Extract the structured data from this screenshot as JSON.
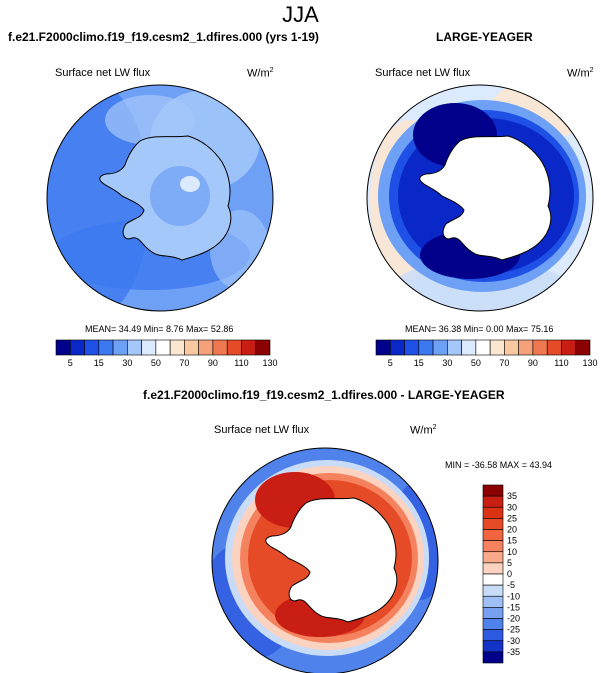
{
  "season": "JJA",
  "panels": [
    {
      "id": "model",
      "title": "f.e21.F2000climo.f19_f19.cesm2_1.dfires.000 (yrs 1-19)",
      "variable": "Surface net LW flux",
      "units_base": "W/m",
      "units_exp": "2",
      "stats": "MEAN= 34.49  Min=  8.76  Max=  52.86",
      "colorbar": [
        "5",
        "15",
        "30",
        "50",
        "70",
        "90",
        "110",
        "130"
      ]
    },
    {
      "id": "obs",
      "title": "LARGE-YEAGER",
      "variable": "Surface net LW flux",
      "units_base": "W/m",
      "units_exp": "2",
      "stats": "MEAN= 36.38  Min=  0.00  Max=  75.16",
      "colorbar": [
        "5",
        "15",
        "30",
        "50",
        "70",
        "90",
        "110",
        "130"
      ]
    },
    {
      "id": "diff",
      "title": "f.e21.F2000climo.f19_f19.cesm2_1.dfires.000 - LARGE-YEAGER",
      "variable": "Surface net LW flux",
      "units_base": "W/m",
      "units_exp": "2",
      "stats": "MIN = -36.58 MAX =  43.94",
      "colorbar": [
        "35",
        "30",
        "25",
        "20",
        "15",
        "10",
        "5",
        "0",
        "-5",
        "-10",
        "-15",
        "-20",
        "-25",
        "-30",
        "-35"
      ]
    }
  ],
  "chart_data": [
    {
      "type": "heatmap",
      "projection": "south-polar-stereographic",
      "title": "f.e21.F2000climo.f19_f19.cesm2_1.dfires.000 (yrs 1-19)",
      "variable": "Surface net LW flux",
      "units": "W/m2",
      "mean": 34.49,
      "min": 8.76,
      "max": 52.86,
      "contour_levels": [
        5,
        15,
        30,
        50,
        70,
        90,
        110,
        130
      ],
      "colors": [
        "#00008b",
        "#0a28c8",
        "#1e50e6",
        "#3c78f0",
        "#6ea0f5",
        "#a5c8fa",
        "#dceaff",
        "#ffffff",
        "#fbe6d2",
        "#f8c8a0",
        "#f5a07a",
        "#f07850",
        "#e64b28",
        "#c81e14",
        "#8b0000"
      ]
    },
    {
      "type": "heatmap",
      "projection": "south-polar-stereographic",
      "title": "LARGE-YEAGER",
      "variable": "Surface net LW flux",
      "units": "W/m2",
      "mean": 36.38,
      "min": 0.0,
      "max": 75.16,
      "contour_levels": [
        5,
        15,
        30,
        50,
        70,
        90,
        110,
        130
      ],
      "colors": [
        "#00008b",
        "#0a28c8",
        "#1e50e6",
        "#3c78f0",
        "#6ea0f5",
        "#a5c8fa",
        "#dceaff",
        "#ffffff",
        "#fbe6d2",
        "#f8c8a0",
        "#f5a07a",
        "#f07850",
        "#e64b28",
        "#c81e14",
        "#8b0000"
      ]
    },
    {
      "type": "heatmap",
      "projection": "south-polar-stereographic",
      "title": "f.e21.F2000climo.f19_f19.cesm2_1.dfires.000 - LARGE-YEAGER",
      "variable": "Surface net LW flux",
      "units": "W/m2",
      "min": -36.58,
      "max": 43.94,
      "contour_levels": [
        35,
        30,
        25,
        20,
        15,
        10,
        5,
        0,
        -5,
        -10,
        -15,
        -20,
        -25,
        -30,
        -35
      ],
      "colors": [
        "#8b0000",
        "#c81e14",
        "#dc3214",
        "#e64b28",
        "#f06440",
        "#f5825e",
        "#f8aa8a",
        "#fcd2c0",
        "#ffffff",
        "#c8dcf8",
        "#a0c0f5",
        "#78a0f0",
        "#5082eb",
        "#2d5ae1",
        "#1432c8",
        "#00008b"
      ]
    }
  ],
  "colors": {
    "ice_white": "#ffffff",
    "coast": "#000000",
    "frame": "#000000"
  }
}
